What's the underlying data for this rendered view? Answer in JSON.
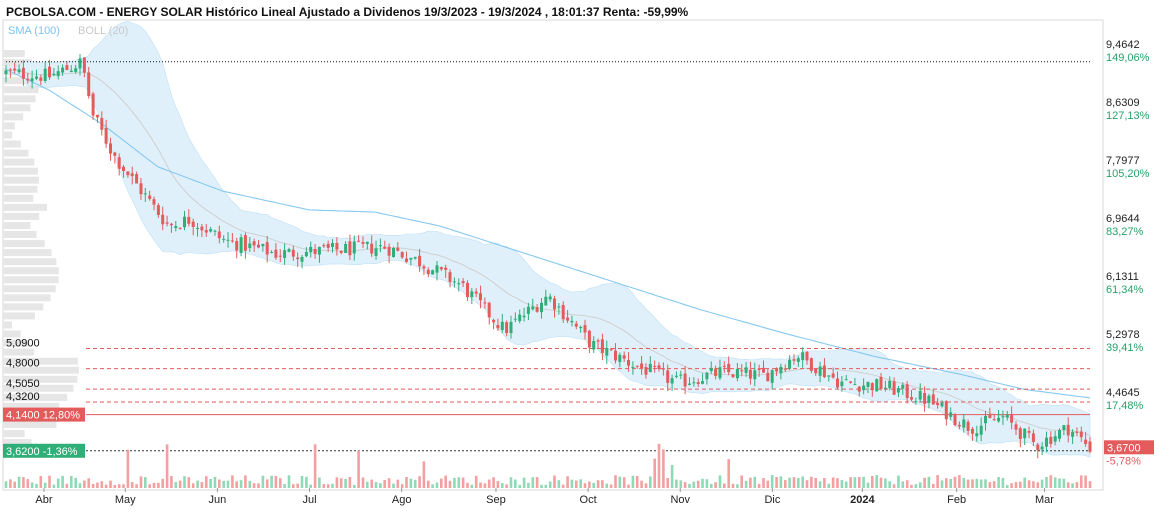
{
  "title": "PCBOLSA.COM - ENERGY SOLAR Histórico Lineal Ajustado a Dividenos 19/3/2023 - 19/3/2024 , 18:01:37 Renta: -59,99%",
  "legend": {
    "sma": "SMA (100)",
    "boll": "BOLL (20)",
    "sma_color": "#7cc3ef",
    "boll_color": "#cfcfcf"
  },
  "colors": {
    "up": "#2fae77",
    "down": "#e35b5b",
    "band_fill": "#dff0fb",
    "sma_line": "#86c8ef",
    "level_line": "#e35b5b",
    "top_line": "#111111"
  },
  "chart_data": {
    "type": "candlestick",
    "title": "PCBOLSA.COM - ENERGY SOLAR Histórico Lineal Ajustado a Dividenos 19/3/2023 - 19/3/2024 , 18:01:37 Renta: -59,99%",
    "x_range": [
      "2023-03-19",
      "2024-03-19"
    ],
    "x_tick_labels": [
      "Abr",
      "May",
      "Jun",
      "Jul",
      "Ago",
      "Sep",
      "Oct",
      "Nov",
      "Dic",
      "2024",
      "Feb",
      "Mar"
    ],
    "y_range": [
      3.4,
      9.8
    ],
    "y_ticks": [
      {
        "value": 9.4642,
        "label": "9,4642",
        "pct": "149,06%"
      },
      {
        "value": 8.6309,
        "label": "8,6309",
        "pct": "127,13%"
      },
      {
        "value": 7.7977,
        "label": "7,7977",
        "pct": "105,20%"
      },
      {
        "value": 6.9644,
        "label": "6,9644",
        "pct": "83,27%"
      },
      {
        "value": 6.1311,
        "label": "6,1311",
        "pct": "61,34%"
      },
      {
        "value": 5.2978,
        "label": "5,2978",
        "pct": "39,41%"
      },
      {
        "value": 4.4645,
        "label": "4,4645",
        "pct": "17,48%"
      }
    ],
    "last_price": {
      "value": 3.67,
      "label": "3,6700",
      "pct": "-5,78%"
    },
    "levels": [
      {
        "value": 5.09,
        "label": "5,0900",
        "style": "dashed"
      },
      {
        "value": 4.8,
        "label": "4,8000",
        "style": "dashed"
      },
      {
        "value": 4.505,
        "label": "4,5050",
        "style": "dashed"
      },
      {
        "value": 4.32,
        "label": "4,3200",
        "style": "dashed"
      },
      {
        "value": 4.14,
        "label": "4,1400",
        "pct": "12,80%",
        "style": "solid"
      },
      {
        "value": 3.62,
        "label": "3,6200",
        "pct": "-1,36%",
        "style": "solid"
      }
    ],
    "top_reference": 9.21,
    "key_points": [
      {
        "t": 0.0,
        "c": 9.05
      },
      {
        "t": 0.04,
        "c": 9.0
      },
      {
        "t": 0.07,
        "c": 9.2
      },
      {
        "t": 0.08,
        "c": 8.45
      },
      {
        "t": 0.1,
        "c": 7.85
      },
      {
        "t": 0.12,
        "c": 7.45
      },
      {
        "t": 0.15,
        "c": 6.85
      },
      {
        "t": 0.17,
        "c": 6.95
      },
      {
        "t": 0.2,
        "c": 6.65
      },
      {
        "t": 0.25,
        "c": 6.45
      },
      {
        "t": 0.3,
        "c": 6.5
      },
      {
        "t": 0.35,
        "c": 6.55
      },
      {
        "t": 0.38,
        "c": 6.35
      },
      {
        "t": 0.42,
        "c": 6.0
      },
      {
        "t": 0.46,
        "c": 5.35
      },
      {
        "t": 0.5,
        "c": 5.85
      },
      {
        "t": 0.54,
        "c": 5.15
      },
      {
        "t": 0.58,
        "c": 4.85
      },
      {
        "t": 0.62,
        "c": 4.6
      },
      {
        "t": 0.66,
        "c": 4.75
      },
      {
        "t": 0.7,
        "c": 4.7
      },
      {
        "t": 0.73,
        "c": 5.0
      },
      {
        "t": 0.77,
        "c": 4.6
      },
      {
        "t": 0.81,
        "c": 4.55
      },
      {
        "t": 0.85,
        "c": 4.35
      },
      {
        "t": 0.89,
        "c": 3.95
      },
      {
        "t": 0.92,
        "c": 4.1
      },
      {
        "t": 0.95,
        "c": 3.7
      },
      {
        "t": 0.98,
        "c": 3.95
      },
      {
        "t": 1.0,
        "c": 3.67
      }
    ],
    "sma_points": [
      {
        "t": 0.0,
        "v": 9.1
      },
      {
        "t": 0.04,
        "v": 8.8
      },
      {
        "t": 0.09,
        "v": 8.3
      },
      {
        "t": 0.14,
        "v": 7.7
      },
      {
        "t": 0.2,
        "v": 7.35
      },
      {
        "t": 0.28,
        "v": 7.08
      },
      {
        "t": 0.34,
        "v": 7.05
      },
      {
        "t": 0.4,
        "v": 6.85
      },
      {
        "t": 0.48,
        "v": 6.45
      },
      {
        "t": 0.56,
        "v": 6.05
      },
      {
        "t": 0.64,
        "v": 5.65
      },
      {
        "t": 0.72,
        "v": 5.3
      },
      {
        "t": 0.8,
        "v": 4.98
      },
      {
        "t": 0.88,
        "v": 4.72
      },
      {
        "t": 0.94,
        "v": 4.5
      },
      {
        "t": 1.0,
        "v": 4.38
      }
    ]
  }
}
